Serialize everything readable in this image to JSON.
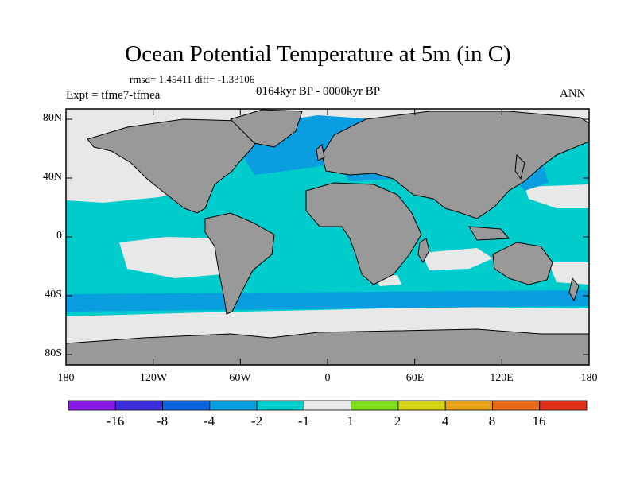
{
  "title": "Ocean Potential Temperature at 5m (in C)",
  "stats": "rmsd= 1.45411 diff= -1.33106",
  "experiment": "Expt = tfme7-tfmea",
  "period": "0164kyr BP - 0000kyr BP",
  "season": "ANN",
  "map": {
    "lat_ticks": [
      "80N",
      "40N",
      "0",
      "40S",
      "80S"
    ],
    "lon_ticks": [
      "180",
      "120W",
      "60W",
      "0",
      "60E",
      "120E",
      "180"
    ],
    "colors": {
      "land": "#999999",
      "range_neg2_neg1": "#00cccc",
      "range_neg4_neg2": "#0a9ee0",
      "range_neg1_1": "#e8e8e8"
    }
  },
  "colorbar": {
    "labels": [
      "-16",
      "-8",
      "-4",
      "-2",
      "-1",
      "1",
      "2",
      "4",
      "8",
      "16"
    ],
    "colors": [
      "#8a1be6",
      "#3b2dd8",
      "#0a64dc",
      "#0a9ee0",
      "#00cccc",
      "#e8e8e8",
      "#7fdc1e",
      "#d6d21a",
      "#e6a019",
      "#e66b19",
      "#e02f19"
    ]
  }
}
